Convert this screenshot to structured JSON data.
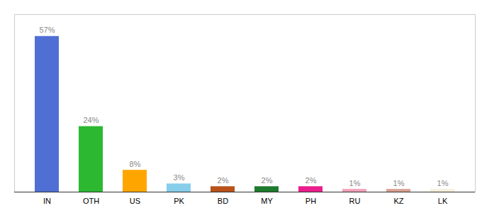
{
  "chart_data": {
    "type": "bar",
    "categories": [
      "IN",
      "OTH",
      "US",
      "PK",
      "BD",
      "MY",
      "PH",
      "RU",
      "KZ",
      "LK"
    ],
    "values": [
      57,
      24,
      8,
      3,
      2,
      2,
      2,
      1,
      1,
      1
    ],
    "value_labels": [
      "57%",
      "24%",
      "8%",
      "3%",
      "2%",
      "2%",
      "2%",
      "1%",
      "1%",
      "1%"
    ],
    "colors": [
      "#4F6FD4",
      "#2DB832",
      "#FFA500",
      "#87CEEB",
      "#B8521A",
      "#1E7A2E",
      "#E91E8C",
      "#F0A0B8",
      "#D9A090",
      "#F5F0DC"
    ],
    "ylim": [
      0,
      65
    ],
    "grid": false,
    "data_labels": true,
    "tick_labels": "x"
  }
}
